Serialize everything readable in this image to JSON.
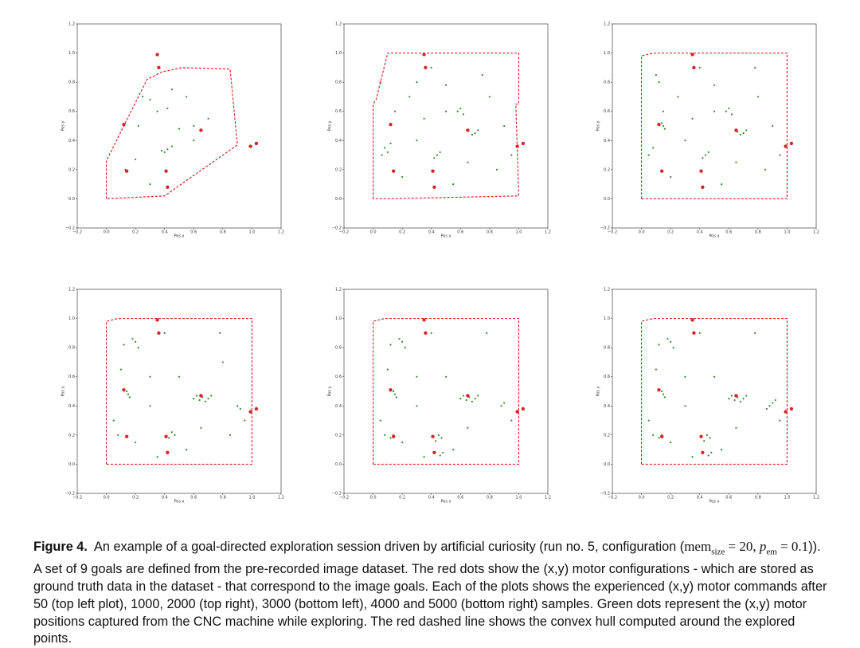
{
  "chart_data": [
    {
      "type": "scatter",
      "xlabel": "Pos x",
      "ylabel": "Pos y",
      "xlim": [
        -0.2,
        1.2
      ],
      "ylim": [
        -0.2,
        1.2
      ],
      "xticks": [
        {
          "value": -0.2,
          "label": "−0.2"
        },
        {
          "value": 0,
          "label": "0.0"
        },
        0.2,
        0.4,
        0.6,
        0.8,
        {
          "value": 1,
          "label": "1.0"
        },
        1.2
      ],
      "yticks": [
        {
          "value": -0.2,
          "label": "−0.2"
        },
        {
          "value": 0,
          "label": "0.0"
        },
        0.2,
        0.4,
        0.6,
        0.8,
        {
          "value": 1,
          "label": "1.0"
        },
        1.2
      ],
      "explored": {
        "color": "#2e8b2e",
        "x": [
          0.13,
          0.2,
          0.4,
          0.42,
          0.38,
          0.45,
          0.25,
          0.3,
          0.45,
          0.55,
          0.6,
          0.5,
          0.35,
          0.42,
          0.22,
          0.3,
          0.6,
          0.7
        ],
        "y": [
          0.2,
          0.27,
          0.32,
          0.34,
          0.33,
          0.36,
          0.7,
          0.68,
          0.75,
          0.7,
          0.5,
          0.48,
          0.6,
          0.62,
          0.5,
          0.1,
          0.4,
          0.55
        ]
      },
      "goals": {
        "color": "#d62728",
        "x": [
          0.35,
          0.36,
          0.12,
          0.14,
          0.41,
          0.42,
          0.65,
          0.99,
          1.03
        ],
        "y": [
          0.99,
          0.9,
          0.51,
          0.19,
          0.19,
          0.08,
          0.47,
          0.36,
          0.38
        ]
      },
      "hull": {
        "color": "#d62728",
        "x": [
          0,
          0,
          0.13,
          0.28,
          0.38,
          0.52,
          0.85,
          0.9,
          0.4,
          0
        ],
        "y": [
          0,
          0.26,
          0.52,
          0.82,
          0.87,
          0.9,
          0.89,
          0.37,
          0.02,
          0
        ]
      }
    },
    {
      "type": "scatter",
      "xlabel": "Pos x",
      "ylabel": "Pos y",
      "xlim": [
        -0.2,
        1.2
      ],
      "ylim": [
        -0.2,
        1.2
      ],
      "xticks": [
        {
          "value": -0.2,
          "label": "−0.2"
        },
        {
          "value": 0,
          "label": "0.0"
        },
        0.2,
        0.4,
        0.6,
        0.8,
        {
          "value": 1,
          "label": "1.0"
        },
        1.2
      ],
      "yticks": [
        {
          "value": -0.2,
          "label": "−0.2"
        },
        {
          "value": 0,
          "label": "0.0"
        },
        0.2,
        0.4,
        0.6,
        0.8,
        {
          "value": 1,
          "label": "1.0"
        },
        1.2
      ],
      "explored": {
        "color": "#2e8b2e",
        "x": [
          0.08,
          0.1,
          0.12,
          0.06,
          0.44,
          0.46,
          0.42,
          0.5,
          0.6,
          0.62,
          0.58,
          0.7,
          0.72,
          0.68,
          0.3,
          0.25,
          0.35,
          0.8,
          0.85,
          0.9,
          0.2,
          0.55,
          0.15,
          0.75,
          0.4,
          0.05,
          0.95,
          0.65,
          0.3,
          0.5
        ],
        "y": [
          0.35,
          0.32,
          0.38,
          0.3,
          0.3,
          0.32,
          0.28,
          0.6,
          0.62,
          0.58,
          0.6,
          0.45,
          0.47,
          0.44,
          0.8,
          0.7,
          0.55,
          0.7,
          0.2,
          0.5,
          0.15,
          0.1,
          0.6,
          0.85,
          0.9,
          0.8,
          0.3,
          0.25,
          0.4,
          0.78
        ]
      },
      "goals": {
        "color": "#d62728",
        "x": [
          0.35,
          0.36,
          0.12,
          0.14,
          0.41,
          0.42,
          0.65,
          0.99,
          1.03
        ],
        "y": [
          0.99,
          0.9,
          0.51,
          0.19,
          0.19,
          0.08,
          0.47,
          0.36,
          0.38
        ]
      },
      "hull": {
        "color": "#d62728",
        "x": [
          0,
          0,
          0.02,
          0.1,
          1.0,
          1.0,
          0.98,
          1.0,
          0.1,
          0
        ],
        "y": [
          0,
          0.65,
          0.68,
          1.0,
          1.0,
          0.65,
          0.65,
          0.02,
          0,
          0
        ]
      }
    },
    {
      "type": "scatter",
      "xlabel": "Pos x",
      "ylabel": "Pos y",
      "xlim": [
        -0.2,
        1.2
      ],
      "ylim": [
        -0.2,
        1.2
      ],
      "xticks": [
        {
          "value": -0.2,
          "label": "−0.2"
        },
        {
          "value": 0,
          "label": "0.0"
        },
        0.2,
        0.4,
        0.6,
        0.8,
        {
          "value": 1,
          "label": "1.0"
        },
        1.2
      ],
      "yticks": [
        {
          "value": -0.2,
          "label": "−0.2"
        },
        {
          "value": 0,
          "label": "0.0"
        },
        0.2,
        0.4,
        0.6,
        0.8,
        {
          "value": 1,
          "label": "1.0"
        },
        1.2
      ],
      "explored": {
        "color": "#2e8b2e",
        "x": [
          0.15,
          0.16,
          0.14,
          0.12,
          0.44,
          0.46,
          0.42,
          0.5,
          0.6,
          0.62,
          0.58,
          0.7,
          0.72,
          0.68,
          0.66,
          0.25,
          0.35,
          0.8,
          0.85,
          0.9,
          0.2,
          0.55,
          0.15,
          0.1,
          0.4,
          0.05,
          0.95,
          0.65,
          0.3,
          0.5,
          0.08,
          0.78
        ],
        "y": [
          0.5,
          0.48,
          0.52,
          0.8,
          0.3,
          0.32,
          0.28,
          0.6,
          0.62,
          0.58,
          0.6,
          0.45,
          0.47,
          0.44,
          0.46,
          0.7,
          0.55,
          0.7,
          0.2,
          0.5,
          0.15,
          0.1,
          0.6,
          0.85,
          0.9,
          0.3,
          0.3,
          0.25,
          0.4,
          0.78,
          0.35,
          0.9
        ]
      },
      "goals": {
        "color": "#d62728",
        "x": [
          0.35,
          0.36,
          0.12,
          0.14,
          0.41,
          0.42,
          0.65,
          0.99,
          1.03
        ],
        "y": [
          0.99,
          0.9,
          0.51,
          0.19,
          0.19,
          0.08,
          0.47,
          0.36,
          0.38
        ]
      },
      "hull": {
        "color": "#d62728",
        "x": [
          0,
          0,
          0.08,
          1.0,
          1.0,
          0
        ],
        "y": [
          0,
          0.98,
          1.0,
          1.0,
          0,
          0
        ]
      }
    },
    {
      "type": "scatter",
      "xlabel": "Pos x",
      "ylabel": "Pos y",
      "xlim": [
        -0.2,
        1.2
      ],
      "ylim": [
        -0.2,
        1.2
      ],
      "xticks": [
        {
          "value": -0.2,
          "label": "−0.2"
        },
        {
          "value": 0,
          "label": "0.0"
        },
        0.2,
        0.4,
        0.6,
        0.8,
        {
          "value": 1,
          "label": "1.0"
        },
        1.2
      ],
      "yticks": [
        {
          "value": -0.2,
          "label": "−0.2"
        },
        {
          "value": 0,
          "label": "0.0"
        },
        0.2,
        0.4,
        0.6,
        0.8,
        {
          "value": 1,
          "label": "1.0"
        },
        1.2
      ],
      "explored": {
        "color": "#2e8b2e",
        "x": [
          0.15,
          0.16,
          0.14,
          0.12,
          0.2,
          0.22,
          0.18,
          0.6,
          0.62,
          0.64,
          0.66,
          0.7,
          0.72,
          0.68,
          0.45,
          0.47,
          0.43,
          0.8,
          0.85,
          0.9,
          0.2,
          0.55,
          0.3,
          0.1,
          0.4,
          0.05,
          0.95,
          0.65,
          0.3,
          0.5,
          0.08,
          0.78,
          0.92,
          0.35
        ],
        "y": [
          0.48,
          0.46,
          0.5,
          0.82,
          0.84,
          0.8,
          0.86,
          0.45,
          0.47,
          0.44,
          0.46,
          0.45,
          0.47,
          0.43,
          0.22,
          0.2,
          0.18,
          0.7,
          0.2,
          0.4,
          0.15,
          0.1,
          0.6,
          0.65,
          0.9,
          0.3,
          0.3,
          0.25,
          0.4,
          0.6,
          0.2,
          0.9,
          0.38,
          0.05
        ]
      },
      "goals": {
        "color": "#d62728",
        "x": [
          0.35,
          0.36,
          0.12,
          0.14,
          0.41,
          0.42,
          0.65,
          0.99,
          1.03
        ],
        "y": [
          0.99,
          0.9,
          0.51,
          0.19,
          0.19,
          0.08,
          0.47,
          0.36,
          0.38
        ]
      },
      "hull": {
        "color": "#d62728",
        "x": [
          0,
          0,
          0.08,
          1.0,
          1.0,
          0
        ],
        "y": [
          0,
          0.98,
          1.0,
          1.0,
          0,
          0
        ]
      }
    },
    {
      "type": "scatter",
      "xlabel": "Pos x",
      "ylabel": "Pos y",
      "xlim": [
        -0.2,
        1.2
      ],
      "ylim": [
        -0.2,
        1.2
      ],
      "xticks": [
        {
          "value": -0.2,
          "label": "−0.2"
        },
        {
          "value": 0,
          "label": "0.0"
        },
        0.2,
        0.4,
        0.6,
        0.8,
        {
          "value": 1,
          "label": "1.0"
        },
        1.2
      ],
      "yticks": [
        {
          "value": -0.2,
          "label": "−0.2"
        },
        {
          "value": 0,
          "label": "0.0"
        },
        0.2,
        0.4,
        0.6,
        0.8,
        {
          "value": 1,
          "label": "1.0"
        },
        1.2
      ],
      "explored": {
        "color": "#2e8b2e",
        "x": [
          0.15,
          0.16,
          0.14,
          0.12,
          0.2,
          0.22,
          0.18,
          0.6,
          0.62,
          0.64,
          0.66,
          0.7,
          0.72,
          0.68,
          0.45,
          0.47,
          0.43,
          0.46,
          0.48,
          0.88,
          0.9,
          0.2,
          0.55,
          0.3,
          0.1,
          0.4,
          0.05,
          0.95,
          0.65,
          0.3,
          0.5,
          0.08,
          0.78,
          0.35,
          0.12,
          0.14
        ],
        "y": [
          0.48,
          0.46,
          0.5,
          0.82,
          0.84,
          0.8,
          0.86,
          0.45,
          0.47,
          0.44,
          0.46,
          0.45,
          0.47,
          0.43,
          0.2,
          0.18,
          0.16,
          0.06,
          0.08,
          0.4,
          0.42,
          0.15,
          0.1,
          0.6,
          0.65,
          0.9,
          0.3,
          0.3,
          0.25,
          0.4,
          0.6,
          0.2,
          0.9,
          0.05,
          0.18,
          0.2
        ]
      },
      "goals": {
        "color": "#d62728",
        "x": [
          0.35,
          0.36,
          0.12,
          0.14,
          0.41,
          0.42,
          0.65,
          0.99,
          1.03
        ],
        "y": [
          0.99,
          0.9,
          0.51,
          0.19,
          0.19,
          0.08,
          0.47,
          0.36,
          0.38
        ]
      },
      "hull": {
        "color": "#d62728",
        "x": [
          0,
          0,
          0.08,
          1.0,
          1.0,
          0
        ],
        "y": [
          0,
          0.98,
          1.0,
          1.0,
          0,
          0
        ]
      }
    },
    {
      "type": "scatter",
      "xlabel": "Pos x",
      "ylabel": "Pos y",
      "xlim": [
        -0.2,
        1.2
      ],
      "ylim": [
        -0.2,
        1.2
      ],
      "xticks": [
        {
          "value": -0.2,
          "label": "−0.2"
        },
        {
          "value": 0,
          "label": "0.0"
        },
        0.2,
        0.4,
        0.6,
        0.8,
        {
          "value": 1,
          "label": "1.0"
        },
        1.2
      ],
      "yticks": [
        {
          "value": -0.2,
          "label": "−0.2"
        },
        {
          "value": 0,
          "label": "0.0"
        },
        0.2,
        0.4,
        0.6,
        0.8,
        {
          "value": 1,
          "label": "1.0"
        },
        1.2
      ],
      "explored": {
        "color": "#2e8b2e",
        "x": [
          0.15,
          0.16,
          0.14,
          0.12,
          0.2,
          0.22,
          0.18,
          0.6,
          0.62,
          0.64,
          0.66,
          0.7,
          0.72,
          0.68,
          0.45,
          0.47,
          0.43,
          0.46,
          0.48,
          0.88,
          0.9,
          0.86,
          0.2,
          0.55,
          0.3,
          0.1,
          0.4,
          0.05,
          0.95,
          0.65,
          0.3,
          0.5,
          0.08,
          0.78,
          0.35,
          0.12,
          0.14,
          0.92
        ],
        "y": [
          0.48,
          0.46,
          0.5,
          0.82,
          0.84,
          0.8,
          0.86,
          0.45,
          0.47,
          0.44,
          0.46,
          0.45,
          0.47,
          0.43,
          0.2,
          0.18,
          0.16,
          0.06,
          0.08,
          0.4,
          0.42,
          0.38,
          0.15,
          0.1,
          0.6,
          0.65,
          0.9,
          0.3,
          0.3,
          0.25,
          0.4,
          0.6,
          0.2,
          0.9,
          0.05,
          0.18,
          0.2,
          0.44
        ]
      },
      "goals": {
        "color": "#d62728",
        "x": [
          0.35,
          0.36,
          0.12,
          0.14,
          0.41,
          0.42,
          0.65,
          0.99,
          1.03
        ],
        "y": [
          0.99,
          0.9,
          0.51,
          0.19,
          0.19,
          0.08,
          0.47,
          0.36,
          0.38
        ]
      },
      "hull": {
        "color": "#d62728",
        "x": [
          0,
          0,
          0.08,
          1.0,
          1.0,
          0
        ],
        "y": [
          0,
          0.98,
          1.0,
          1.0,
          0,
          0
        ]
      }
    }
  ],
  "caption": {
    "label": "Figure 4.",
    "text1": "An example of a goal-directed exploration session driven by artificial curiosity (run no. 5, configuration (",
    "mem": "mem",
    "mem_sub": "size",
    "eq1": "= 20,",
    "p": "p",
    "p_sub": "em",
    "eq2": "= 0.1",
    "text2": ")). A set of 9 goals are defined from the pre-recorded image dataset. The red dots show the (x,y) motor configurations - which are stored as ground truth data in the dataset - that correspond to the image goals. Each of the plots shows the experienced (x,y) motor commands after 50 (top left plot), 1000, 2000 (top right), 3000 (bottom left), 4000 and 5000 (bottom right) samples. Green dots represent the (x,y) motor positions captured from the CNC machine while exploring. The red dashed line shows the convex hull computed around the explored points."
  }
}
